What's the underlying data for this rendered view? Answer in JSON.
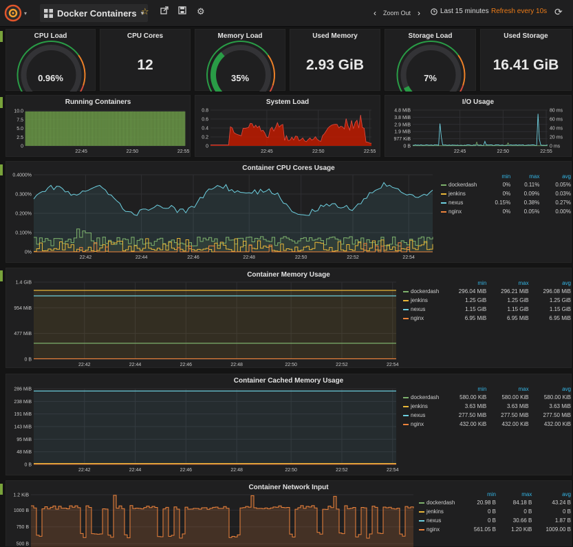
{
  "topbar": {
    "dashboard_title": "Docker Containers",
    "zoom_out": "Zoom Out",
    "time_range": "Last 15 minutes",
    "refresh": "Refresh every 10s"
  },
  "stats": {
    "cpu_load": {
      "title": "CPU Load",
      "value": "0.96%",
      "fraction": 0.0096
    },
    "cpu_cores": {
      "title": "CPU Cores",
      "value": "12"
    },
    "memory_load": {
      "title": "Memory Load",
      "value": "35%",
      "fraction": 0.35
    },
    "used_memory": {
      "title": "Used Memory",
      "value": "2.93 GiB"
    },
    "storage_load": {
      "title": "Storage Load",
      "value": "7%",
      "fraction": 0.07
    },
    "used_storage": {
      "title": "Used Storage",
      "value": "16.41 GiB"
    }
  },
  "colors": {
    "green": "#7eb26d",
    "yellow": "#eab839",
    "cyan": "#6ed0e0",
    "orange": "#ef843c",
    "red": "#bf1b00",
    "gauge_green": "#299c46",
    "gauge_orange": "#ed8128",
    "gauge_red": "#d44a3a"
  },
  "time_ticks": [
    "22:42",
    "22:44",
    "22:46",
    "22:48",
    "22:50",
    "22:52",
    "22:54"
  ],
  "small_time_ticks": [
    "22:45",
    "22:50",
    "22:55"
  ],
  "legend_headers": {
    "min": "min",
    "max": "max",
    "avg": "avg"
  },
  "running_containers": {
    "title": "Running Containers",
    "y_ticks": [
      "10.0",
      "7.5",
      "5.0",
      "2.5",
      "0"
    ]
  },
  "system_load": {
    "title": "System Load",
    "y_ticks": [
      "0.8",
      "0.6",
      "0.4",
      "0.2",
      "0"
    ]
  },
  "io_usage": {
    "title": "I/O Usage",
    "y_ticks_left": [
      "4.8 MiB",
      "3.8 MiB",
      "2.9 MiB",
      "1.9 MiB",
      "977 KiB",
      "0 B"
    ],
    "y_ticks_right": [
      "80 ms",
      "60 ms",
      "40 ms",
      "20 ms",
      "0 ms"
    ]
  },
  "cpu_usage": {
    "title": "Container CPU Cores Usage",
    "y_ticks": [
      "0.4000%",
      "0.300%",
      "0.200%",
      "0.100%",
      "0%"
    ],
    "legend": [
      {
        "name": "dockerdash",
        "min": "0%",
        "max": "0.11%",
        "avg": "0.05%",
        "color": "#7eb26d"
      },
      {
        "name": "jenkins",
        "min": "0%",
        "max": "0.09%",
        "avg": "0.03%",
        "color": "#eab839"
      },
      {
        "name": "nexus",
        "min": "0.15%",
        "max": "0.38%",
        "avg": "0.27%",
        "color": "#6ed0e0"
      },
      {
        "name": "nginx",
        "min": "0%",
        "max": "0.05%",
        "avg": "0.00%",
        "color": "#ef843c"
      }
    ]
  },
  "memory_usage": {
    "title": "Container Memory Usage",
    "y_ticks": [
      "1.4 GiB",
      "954 MiB",
      "477 MiB",
      "0 B"
    ],
    "legend": [
      {
        "name": "dockerdash",
        "min": "296.04 MiB",
        "max": "296.21 MiB",
        "avg": "296.08 MiB",
        "color": "#7eb26d"
      },
      {
        "name": "jenkins",
        "min": "1.25 GiB",
        "max": "1.25 GiB",
        "avg": "1.25 GiB",
        "color": "#eab839"
      },
      {
        "name": "nexus",
        "min": "1.15 GiB",
        "max": "1.15 GiB",
        "avg": "1.15 GiB",
        "color": "#6ed0e0"
      },
      {
        "name": "nginx",
        "min": "6.95 MiB",
        "max": "6.95 MiB",
        "avg": "6.95 MiB",
        "color": "#ef843c"
      }
    ]
  },
  "cached_memory": {
    "title": "Container Cached Memory Usage",
    "y_ticks": [
      "286 MiB",
      "238 MiB",
      "191 MiB",
      "143 MiB",
      "95 MiB",
      "48 MiB",
      "0 B"
    ],
    "legend": [
      {
        "name": "dockerdash",
        "min": "580.00 KiB",
        "max": "580.00 KiB",
        "avg": "580.00 KiB",
        "color": "#7eb26d"
      },
      {
        "name": "jenkins",
        "min": "3.63 MiB",
        "max": "3.63 MiB",
        "avg": "3.63 MiB",
        "color": "#eab839"
      },
      {
        "name": "nexus",
        "min": "277.50 MiB",
        "max": "277.50 MiB",
        "avg": "277.50 MiB",
        "color": "#6ed0e0"
      },
      {
        "name": "nginx",
        "min": "432.00 KiB",
        "max": "432.00 KiB",
        "avg": "432.00 KiB",
        "color": "#ef843c"
      }
    ]
  },
  "network_input": {
    "title": "Container Network Input",
    "y_ticks": [
      "1.2 KiB",
      "1000 B",
      "750 B",
      "500 B"
    ],
    "legend": [
      {
        "name": "dockerdash",
        "min": "20.98 B",
        "max": "84.18 B",
        "avg": "43.24 B",
        "color": "#7eb26d"
      },
      {
        "name": "jenkins",
        "min": "0 B",
        "max": "0 B",
        "avg": "0 B",
        "color": "#eab839"
      },
      {
        "name": "nexus",
        "min": "0 B",
        "max": "30.66 B",
        "avg": "1.87 B",
        "color": "#6ed0e0"
      },
      {
        "name": "nginx",
        "min": "561.05 B",
        "max": "1.20 KiB",
        "avg": "1009.00 B",
        "color": "#ef843c"
      }
    ]
  }
}
